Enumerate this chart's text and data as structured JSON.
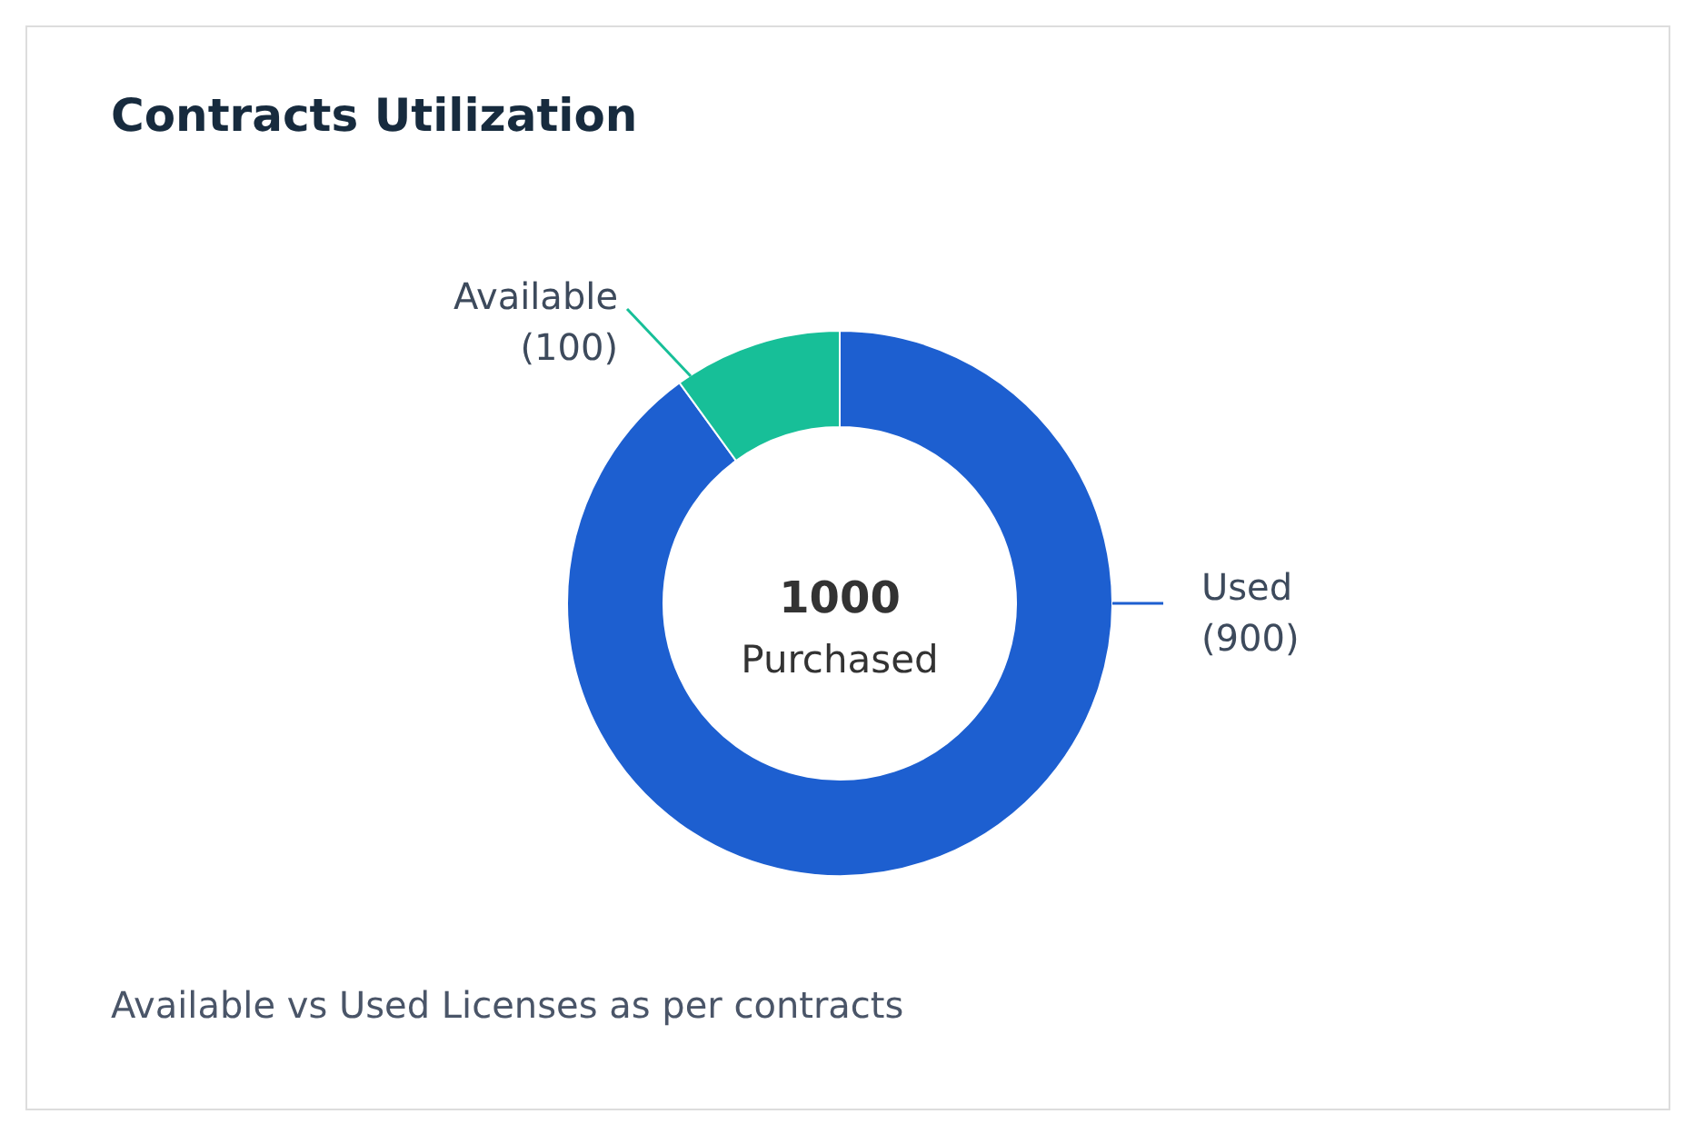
{
  "chart_data": {
    "type": "donut",
    "title": "Contracts Utilization",
    "categories": [
      "Used",
      "Available"
    ],
    "values": [
      900,
      100
    ],
    "colors": [
      "#1d5fd0",
      "#17bf98"
    ],
    "value_labels": [
      "(900)",
      "(100)"
    ],
    "annotations": [
      "1000",
      "Purchased",
      "Available vs Used Licenses as per contracts"
    ]
  }
}
